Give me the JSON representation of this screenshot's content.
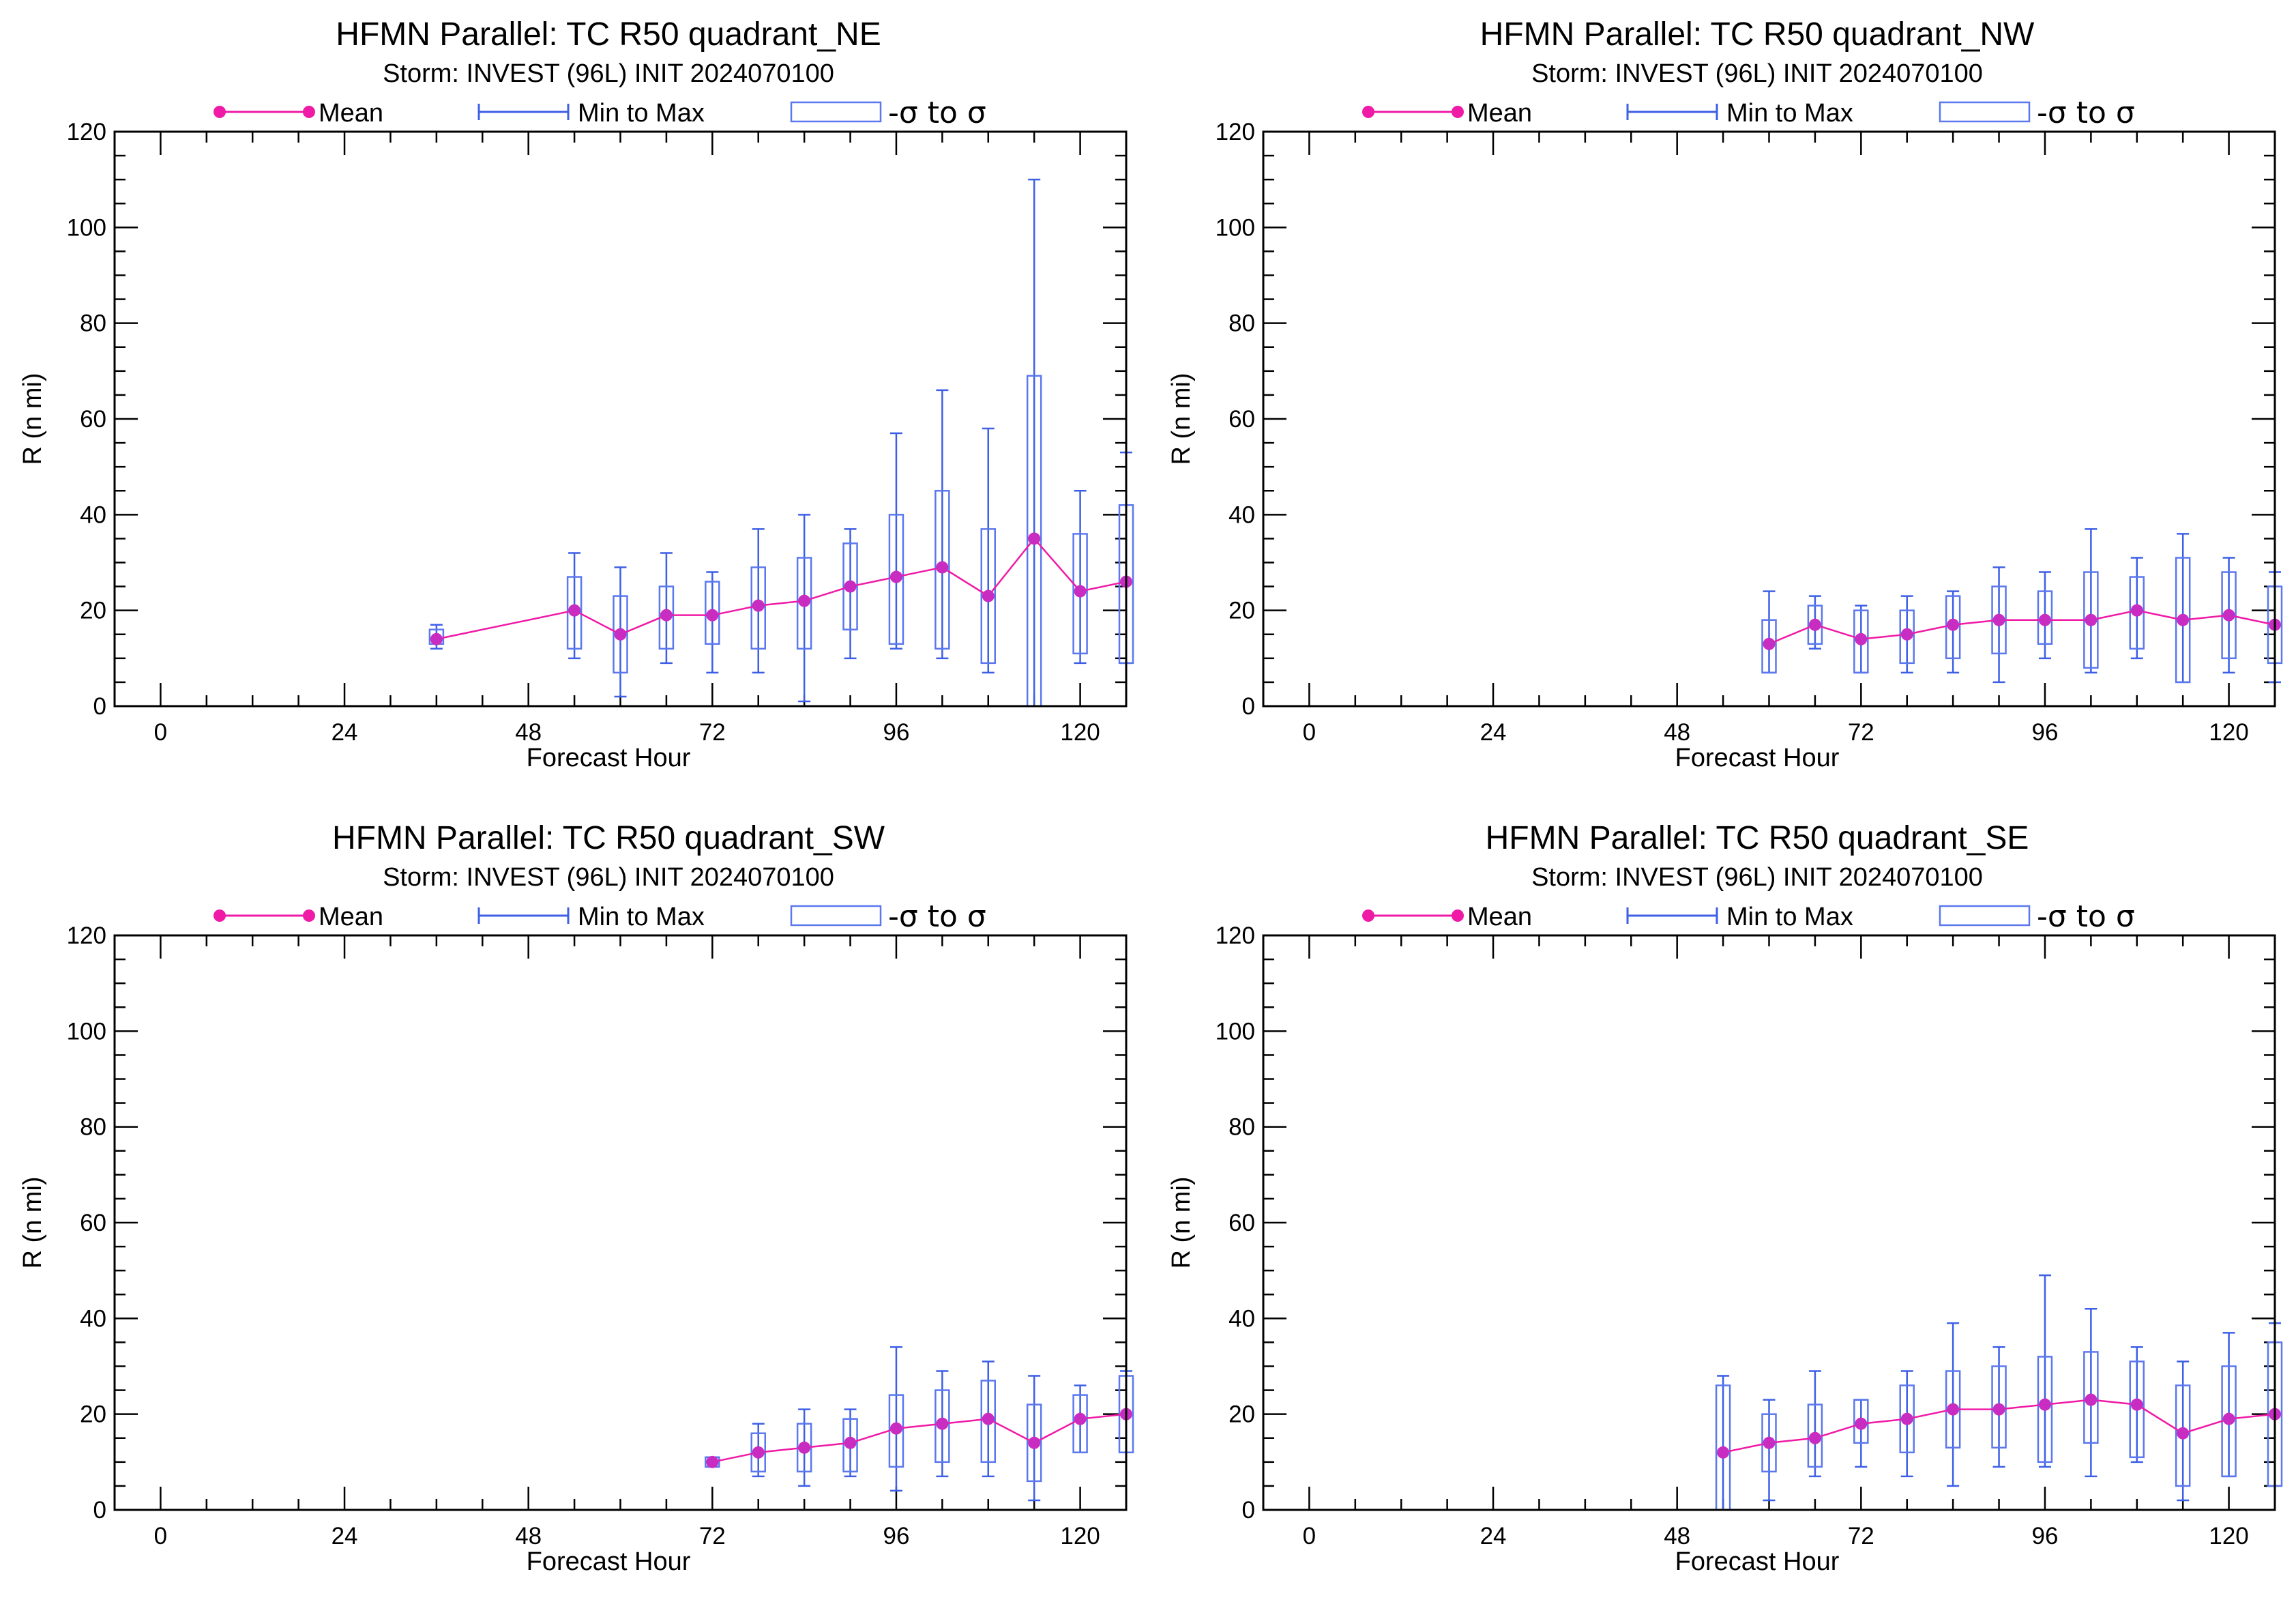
{
  "colors": {
    "mean": "#ef1aa6",
    "mean_marker": "#c92cc0",
    "whisker": "#3d5fe6",
    "box": "#5b78ee",
    "axis": "#000000"
  },
  "legend": {
    "mean": "Mean",
    "minmax": "Min to Max",
    "sigma": "-σ to σ"
  },
  "chart_data": [
    {
      "type": "box",
      "title": "HFMN Parallel: TC  R50 quadrant_NE",
      "subtitle": "Storm: INVEST (96L) INIT 2024070100",
      "xlabel": "Forecast Hour",
      "ylabel": "R (n mi)",
      "xlim": [
        -6,
        126
      ],
      "ylim": [
        0,
        120
      ],
      "xticks": [
        0,
        24,
        48,
        72,
        96,
        120
      ],
      "yticks": [
        0,
        20,
        40,
        60,
        80,
        100,
        120
      ],
      "legend_position": "top",
      "data": [
        {
          "x": 36,
          "min": 12,
          "max": 17,
          "lo": 13,
          "hi": 16,
          "mean": 14
        },
        {
          "x": 54,
          "min": 10,
          "max": 32,
          "lo": 12,
          "hi": 27,
          "mean": 20
        },
        {
          "x": 60,
          "min": 2,
          "max": 29,
          "lo": 7,
          "hi": 23,
          "mean": 15
        },
        {
          "x": 66,
          "min": 9,
          "max": 32,
          "lo": 12,
          "hi": 25,
          "mean": 19
        },
        {
          "x": 72,
          "min": 7,
          "max": 28,
          "lo": 13,
          "hi": 26,
          "mean": 19
        },
        {
          "x": 78,
          "min": 7,
          "max": 37,
          "lo": 12,
          "hi": 29,
          "mean": 21
        },
        {
          "x": 84,
          "min": 1,
          "max": 40,
          "lo": 12,
          "hi": 31,
          "mean": 22
        },
        {
          "x": 90,
          "min": 10,
          "max": 37,
          "lo": 16,
          "hi": 34,
          "mean": 25
        },
        {
          "x": 96,
          "min": 12,
          "max": 57,
          "lo": 13,
          "hi": 40,
          "mean": 27
        },
        {
          "x": 102,
          "min": 10,
          "max": 66,
          "lo": 12,
          "hi": 45,
          "mean": 29
        },
        {
          "x": 108,
          "min": 7,
          "max": 58,
          "lo": 9,
          "hi": 37,
          "mean": 23
        },
        {
          "x": 114,
          "min": 0,
          "max": 110,
          "lo": 0,
          "hi": 69,
          "mean": 35
        },
        {
          "x": 120,
          "min": 9,
          "max": 45,
          "lo": 11,
          "hi": 36,
          "mean": 24
        },
        {
          "x": 126,
          "min": 9,
          "max": 53,
          "lo": 9,
          "hi": 42,
          "mean": 26
        }
      ]
    },
    {
      "type": "box",
      "title": "HFMN Parallel: TC  R50 quadrant_NW",
      "subtitle": "Storm: INVEST (96L) INIT 2024070100",
      "xlabel": "Forecast Hour",
      "ylabel": "R (n mi)",
      "xlim": [
        -6,
        126
      ],
      "ylim": [
        0,
        120
      ],
      "xticks": [
        0,
        24,
        48,
        72,
        96,
        120
      ],
      "yticks": [
        0,
        20,
        40,
        60,
        80,
        100,
        120
      ],
      "legend_position": "top",
      "data": [
        {
          "x": 60,
          "min": 7,
          "max": 24,
          "lo": 7,
          "hi": 18,
          "mean": 13
        },
        {
          "x": 66,
          "min": 12,
          "max": 23,
          "lo": 13,
          "hi": 21,
          "mean": 17
        },
        {
          "x": 72,
          "min": 7,
          "max": 21,
          "lo": 7,
          "hi": 20,
          "mean": 14
        },
        {
          "x": 78,
          "min": 7,
          "max": 23,
          "lo": 9,
          "hi": 20,
          "mean": 15
        },
        {
          "x": 84,
          "min": 7,
          "max": 24,
          "lo": 10,
          "hi": 23,
          "mean": 17
        },
        {
          "x": 90,
          "min": 5,
          "max": 29,
          "lo": 11,
          "hi": 25,
          "mean": 18
        },
        {
          "x": 96,
          "min": 10,
          "max": 28,
          "lo": 13,
          "hi": 24,
          "mean": 18
        },
        {
          "x": 102,
          "min": 7,
          "max": 37,
          "lo": 8,
          "hi": 28,
          "mean": 18
        },
        {
          "x": 108,
          "min": 10,
          "max": 31,
          "lo": 12,
          "hi": 27,
          "mean": 20
        },
        {
          "x": 114,
          "min": 5,
          "max": 36,
          "lo": 5,
          "hi": 31,
          "mean": 18
        },
        {
          "x": 120,
          "min": 7,
          "max": 31,
          "lo": 10,
          "hi": 28,
          "mean": 19
        },
        {
          "x": 126,
          "min": 5,
          "max": 28,
          "lo": 9,
          "hi": 25,
          "mean": 17
        }
      ]
    },
    {
      "type": "box",
      "title": "HFMN Parallel: TC  R50 quadrant_SW",
      "subtitle": "Storm: INVEST (96L) INIT 2024070100",
      "xlabel": "Forecast Hour",
      "ylabel": "R (n mi)",
      "xlim": [
        -6,
        126
      ],
      "ylim": [
        0,
        120
      ],
      "xticks": [
        0,
        24,
        48,
        72,
        96,
        120
      ],
      "yticks": [
        0,
        20,
        40,
        60,
        80,
        100,
        120
      ],
      "legend_position": "top",
      "data": [
        {
          "x": 72,
          "min": 9,
          "max": 11,
          "lo": 9,
          "hi": 11,
          "mean": 10
        },
        {
          "x": 78,
          "min": 7,
          "max": 18,
          "lo": 8,
          "hi": 16,
          "mean": 12
        },
        {
          "x": 84,
          "min": 5,
          "max": 21,
          "lo": 8,
          "hi": 18,
          "mean": 13
        },
        {
          "x": 90,
          "min": 7,
          "max": 21,
          "lo": 8,
          "hi": 19,
          "mean": 14
        },
        {
          "x": 96,
          "min": 4,
          "max": 34,
          "lo": 9,
          "hi": 24,
          "mean": 17
        },
        {
          "x": 102,
          "min": 7,
          "max": 29,
          "lo": 10,
          "hi": 25,
          "mean": 18
        },
        {
          "x": 108,
          "min": 7,
          "max": 31,
          "lo": 10,
          "hi": 27,
          "mean": 19
        },
        {
          "x": 114,
          "min": 2,
          "max": 28,
          "lo": 6,
          "hi": 22,
          "mean": 14
        },
        {
          "x": 120,
          "min": 12,
          "max": 26,
          "lo": 12,
          "hi": 24,
          "mean": 19
        },
        {
          "x": 126,
          "min": 12,
          "max": 29,
          "lo": 12,
          "hi": 28,
          "mean": 20
        }
      ]
    },
    {
      "type": "box",
      "title": "HFMN Parallel: TC  R50 quadrant_SE",
      "subtitle": "Storm: INVEST (96L) INIT 2024070100",
      "xlabel": "Forecast Hour",
      "ylabel": "R (n mi)",
      "xlim": [
        -6,
        126
      ],
      "ylim": [
        0,
        120
      ],
      "xticks": [
        0,
        24,
        48,
        72,
        96,
        120
      ],
      "yticks": [
        0,
        20,
        40,
        60,
        80,
        100,
        120
      ],
      "legend_position": "top",
      "data": [
        {
          "x": 54,
          "min": 0,
          "max": 28,
          "lo": 0,
          "hi": 26,
          "mean": 12
        },
        {
          "x": 60,
          "min": 2,
          "max": 23,
          "lo": 8,
          "hi": 20,
          "mean": 14
        },
        {
          "x": 66,
          "min": 7,
          "max": 29,
          "lo": 9,
          "hi": 22,
          "mean": 15
        },
        {
          "x": 72,
          "min": 9,
          "max": 23,
          "lo": 14,
          "hi": 23,
          "mean": 18
        },
        {
          "x": 78,
          "min": 7,
          "max": 29,
          "lo": 12,
          "hi": 26,
          "mean": 19
        },
        {
          "x": 84,
          "min": 5,
          "max": 39,
          "lo": 13,
          "hi": 29,
          "mean": 21
        },
        {
          "x": 90,
          "min": 9,
          "max": 34,
          "lo": 13,
          "hi": 30,
          "mean": 21
        },
        {
          "x": 96,
          "min": 9,
          "max": 49,
          "lo": 10,
          "hi": 32,
          "mean": 22
        },
        {
          "x": 102,
          "min": 7,
          "max": 42,
          "lo": 14,
          "hi": 33,
          "mean": 23
        },
        {
          "x": 108,
          "min": 10,
          "max": 34,
          "lo": 11,
          "hi": 31,
          "mean": 22
        },
        {
          "x": 114,
          "min": 2,
          "max": 31,
          "lo": 5,
          "hi": 26,
          "mean": 16
        },
        {
          "x": 120,
          "min": 7,
          "max": 37,
          "lo": 7,
          "hi": 30,
          "mean": 19
        },
        {
          "x": 126,
          "min": 5,
          "max": 39,
          "lo": 5,
          "hi": 35,
          "mean": 20
        }
      ]
    }
  ]
}
